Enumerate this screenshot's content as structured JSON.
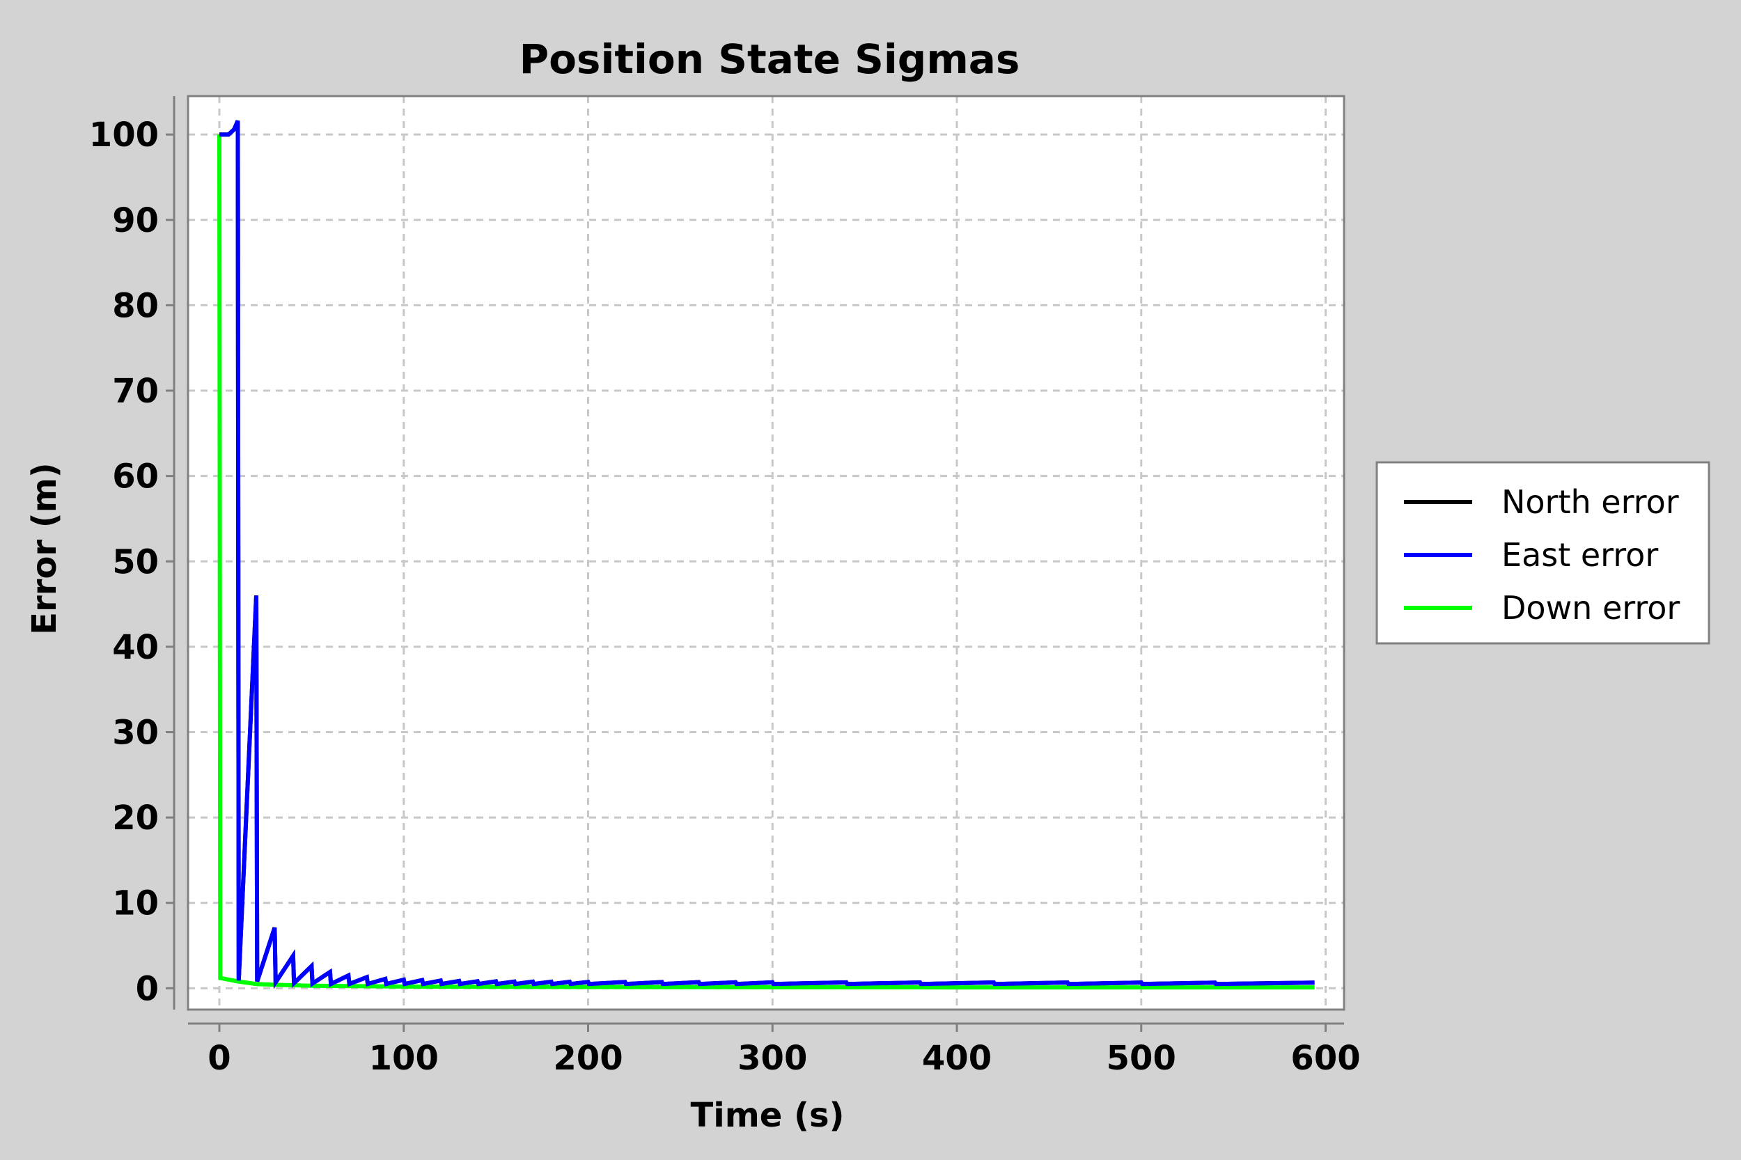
{
  "chart_data": {
    "type": "line",
    "title": "Position State Sigmas",
    "xlabel": "Time (s)",
    "ylabel": "Error (m)",
    "xlim": [
      -17,
      610
    ],
    "ylim": [
      -2.5,
      104.5
    ],
    "xticks": [
      0,
      100,
      200,
      300,
      400,
      500,
      600
    ],
    "yticks": [
      0,
      10,
      20,
      30,
      40,
      50,
      60,
      70,
      80,
      90,
      100
    ],
    "grid": true,
    "legend_position": "right",
    "series": [
      {
        "name": "North error",
        "color": "#000000",
        "x": [
          0,
          1,
          5,
          8,
          10,
          10.5,
          20,
          20.5,
          30,
          30.5,
          40,
          40.5,
          50,
          50.5,
          60,
          60.5,
          70,
          70.5,
          80,
          80.5,
          90,
          90.5,
          100,
          100.5,
          110,
          110.5,
          120,
          120.5,
          130,
          130.5,
          140,
          140.5,
          150,
          150.5,
          160,
          160.5,
          170,
          170.5,
          180,
          180.5,
          190,
          190.5,
          200,
          200.5,
          220,
          220.5,
          240,
          240.5,
          260,
          260.5,
          280,
          280.5,
          300,
          300.5,
          340,
          340.5,
          380,
          380.5,
          420,
          420.5,
          460,
          460.5,
          500,
          500.5,
          540,
          540.5,
          594
        ],
        "y": [
          100,
          100,
          100,
          100.6,
          101.6,
          0.9,
          46,
          0.8,
          7.1,
          0.7,
          3.8,
          0.6,
          2.6,
          0.55,
          1.9,
          0.5,
          1.5,
          0.5,
          1.3,
          0.5,
          1.1,
          0.5,
          1.0,
          0.5,
          0.95,
          0.5,
          0.9,
          0.5,
          0.85,
          0.5,
          0.82,
          0.5,
          0.8,
          0.5,
          0.78,
          0.5,
          0.77,
          0.5,
          0.76,
          0.5,
          0.75,
          0.5,
          0.74,
          0.5,
          0.73,
          0.5,
          0.72,
          0.5,
          0.71,
          0.5,
          0.7,
          0.5,
          0.7,
          0.5,
          0.69,
          0.5,
          0.68,
          0.5,
          0.68,
          0.5,
          0.67,
          0.5,
          0.67,
          0.5,
          0.66,
          0.5,
          0.66
        ]
      },
      {
        "name": "East error",
        "color": "#0000ff",
        "x": [
          0,
          1,
          5,
          8,
          10,
          10.5,
          20,
          20.5,
          30,
          30.5,
          40,
          40.5,
          50,
          50.5,
          60,
          60.5,
          70,
          70.5,
          80,
          80.5,
          90,
          90.5,
          100,
          100.5,
          110,
          110.5,
          120,
          120.5,
          130,
          130.5,
          140,
          140.5,
          150,
          150.5,
          160,
          160.5,
          170,
          170.5,
          180,
          180.5,
          190,
          190.5,
          200,
          200.5,
          220,
          220.5,
          240,
          240.5,
          260,
          260.5,
          280,
          280.5,
          300,
          300.5,
          340,
          340.5,
          380,
          380.5,
          420,
          420.5,
          460,
          460.5,
          500,
          500.5,
          540,
          540.5,
          594
        ],
        "y": [
          100,
          100,
          100,
          100.6,
          101.6,
          0.9,
          46,
          0.8,
          7.1,
          0.7,
          3.8,
          0.6,
          2.6,
          0.55,
          1.9,
          0.5,
          1.5,
          0.5,
          1.3,
          0.5,
          1.1,
          0.5,
          1.0,
          0.5,
          0.95,
          0.5,
          0.9,
          0.5,
          0.85,
          0.5,
          0.82,
          0.5,
          0.8,
          0.5,
          0.78,
          0.5,
          0.77,
          0.5,
          0.76,
          0.5,
          0.75,
          0.5,
          0.74,
          0.5,
          0.73,
          0.5,
          0.72,
          0.5,
          0.71,
          0.5,
          0.7,
          0.5,
          0.7,
          0.5,
          0.69,
          0.5,
          0.68,
          0.5,
          0.68,
          0.5,
          0.67,
          0.5,
          0.67,
          0.5,
          0.66,
          0.5,
          0.66
        ]
      },
      {
        "name": "Down error",
        "color": "#00ff00",
        "x": [
          0,
          0.5,
          10,
          20,
          30,
          50,
          100,
          200,
          300,
          400,
          500,
          594
        ],
        "y": [
          100,
          1.2,
          0.8,
          0.5,
          0.4,
          0.3,
          0.2,
          0.15,
          0.12,
          0.1,
          0.1,
          0.1
        ]
      }
    ]
  }
}
